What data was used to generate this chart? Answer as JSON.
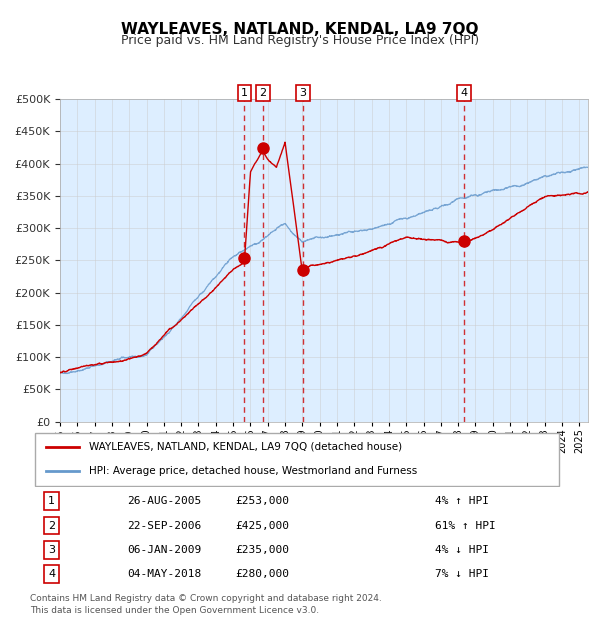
{
  "title": "WAYLEAVES, NATLAND, KENDAL, LA9 7QQ",
  "subtitle": "Price paid vs. HM Land Registry's House Price Index (HPI)",
  "footer": "Contains HM Land Registry data © Crown copyright and database right 2024.\nThis data is licensed under the Open Government Licence v3.0.",
  "legend_entry1": "WAYLEAVES, NATLAND, KENDAL, LA9 7QQ (detached house)",
  "legend_entry2": "HPI: Average price, detached house, Westmorland and Furness",
  "sale_color": "#cc0000",
  "hpi_color": "#6699cc",
  "background_chart": "#ddeeff",
  "grid_color": "#cccccc",
  "ylabel_color": "#333333",
  "transactions": [
    {
      "label": "1",
      "date_str": "26-AUG-2005",
      "price": 253000,
      "pct": "4%",
      "dir": "↑",
      "x_year": 2005.65
    },
    {
      "label": "2",
      "date_str": "22-SEP-2006",
      "price": 425000,
      "pct": "61%",
      "dir": "↑",
      "x_year": 2006.72
    },
    {
      "label": "3",
      "date_str": "06-JAN-2009",
      "price": 235000,
      "pct": "4%",
      "dir": "↓",
      "x_year": 2009.02
    },
    {
      "label": "4",
      "date_str": "04-MAY-2018",
      "price": 280000,
      "pct": "7%",
      "dir": "↓",
      "x_year": 2018.34
    }
  ],
  "ylim": [
    0,
    500000
  ],
  "yticks": [
    0,
    50000,
    100000,
    150000,
    200000,
    250000,
    300000,
    350000,
    400000,
    450000,
    500000
  ],
  "xlim_start": 1995.0,
  "xlim_end": 2025.5
}
